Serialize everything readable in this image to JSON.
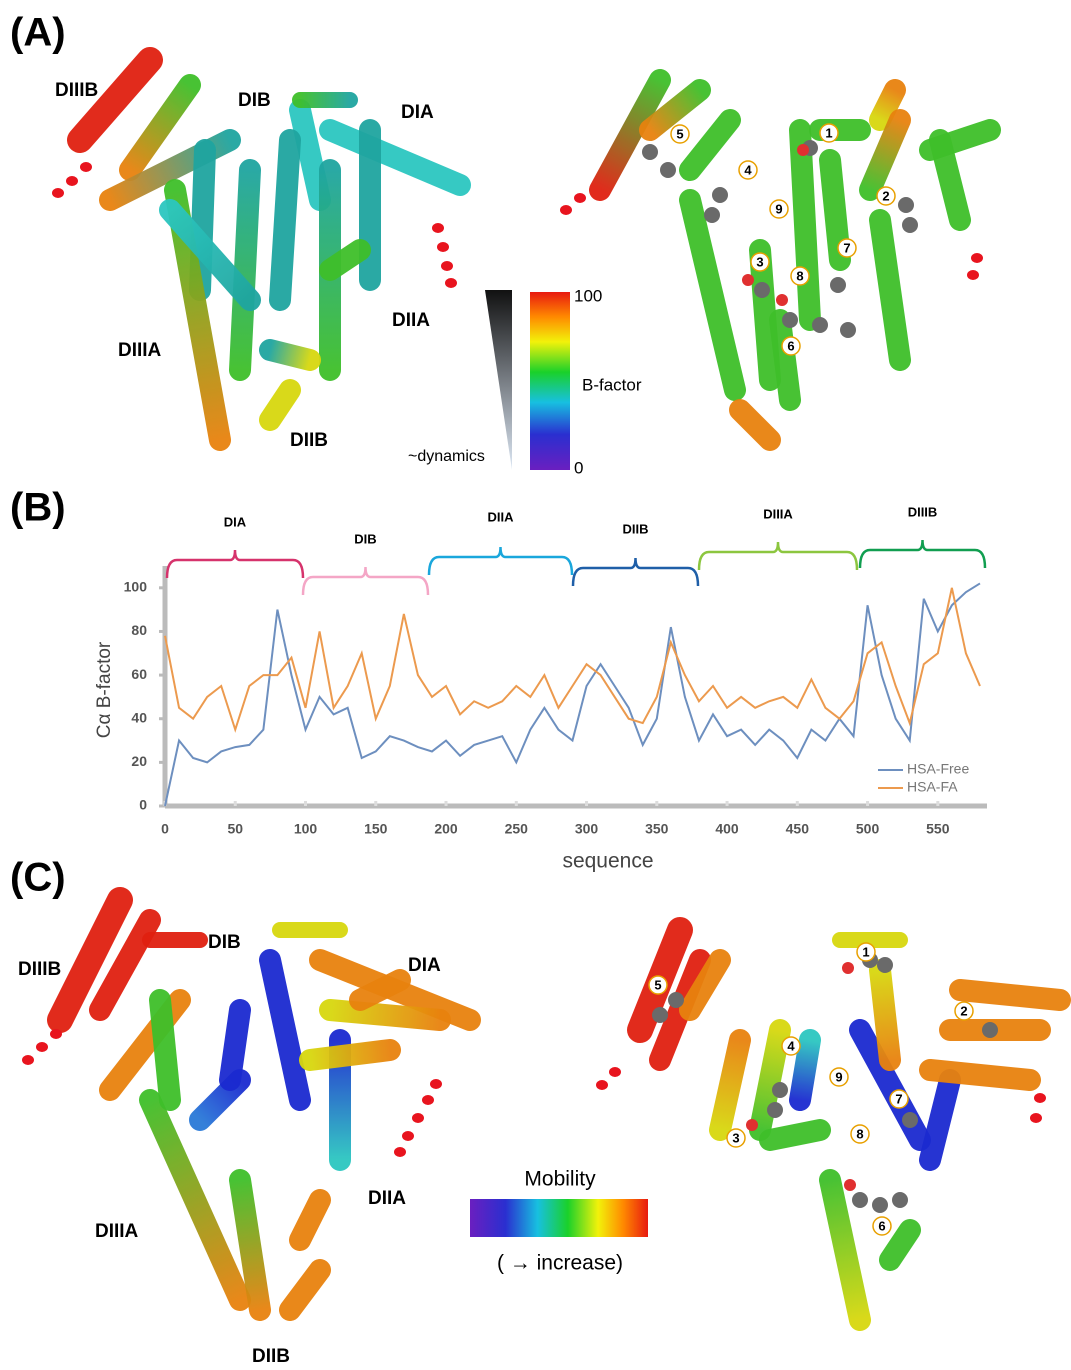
{
  "panel_a": {
    "label": "(A)",
    "domains": [
      "DIIIB",
      "DIB",
      "DIA",
      "DIIA",
      "DIIIA",
      "DIIB"
    ],
    "sites": [
      "5",
      "1",
      "4",
      "9",
      "2",
      "7",
      "3",
      "8",
      "6"
    ],
    "colorbar": {
      "max": 100,
      "min": 0,
      "title": "B-factor",
      "arrow_label": "~dynamics"
    }
  },
  "chart_data": {
    "type": "line",
    "panel_label": "(B)",
    "domains": [
      "DIA",
      "DIB",
      "DIIA",
      "DIIB",
      "DIIIA",
      "DIIIB"
    ],
    "y_label": "Cα B-factor",
    "x_label": "sequence",
    "x": [
      0,
      10,
      20,
      30,
      40,
      50,
      60,
      70,
      80,
      90,
      100,
      110,
      120,
      130,
      140,
      150,
      160,
      170,
      180,
      190,
      200,
      210,
      220,
      230,
      240,
      250,
      260,
      270,
      280,
      290,
      300,
      310,
      320,
      330,
      340,
      350,
      360,
      370,
      380,
      390,
      400,
      410,
      420,
      430,
      440,
      450,
      460,
      470,
      480,
      490,
      500,
      510,
      520,
      530,
      540,
      550,
      560,
      570,
      580
    ],
    "series": [
      {
        "name": "HSA-Free",
        "color": "#6d8fbf",
        "values": [
          0,
          30,
          22,
          20,
          25,
          27,
          28,
          35,
          90,
          60,
          35,
          50,
          42,
          45,
          22,
          25,
          32,
          30,
          27,
          25,
          30,
          23,
          28,
          30,
          32,
          20,
          35,
          45,
          35,
          30,
          55,
          65,
          55,
          45,
          28,
          40,
          82,
          50,
          30,
          42,
          32,
          35,
          28,
          35,
          30,
          22,
          35,
          30,
          40,
          32,
          92,
          60,
          40,
          30,
          95,
          80,
          92,
          98,
          102
        ]
      },
      {
        "name": "HSA-FA",
        "color": "#ec9a4e",
        "values": [
          78,
          45,
          40,
          50,
          55,
          35,
          55,
          60,
          60,
          68,
          45,
          80,
          45,
          55,
          70,
          40,
          55,
          88,
          60,
          50,
          55,
          42,
          48,
          45,
          48,
          55,
          50,
          60,
          45,
          55,
          65,
          60,
          50,
          40,
          38,
          50,
          75,
          60,
          48,
          55,
          45,
          50,
          45,
          48,
          50,
          45,
          58,
          45,
          40,
          48,
          70,
          75,
          55,
          38,
          65,
          70,
          100,
          70,
          55
        ]
      }
    ],
    "xlim": [
      0,
      585
    ],
    "ylim": [
      0,
      110
    ],
    "xticks": [
      0,
      50,
      100,
      150,
      200,
      250,
      300,
      350,
      400,
      450,
      500,
      550
    ],
    "yticks": [
      0,
      20,
      40,
      60,
      80,
      100
    ]
  },
  "panel_c": {
    "label": "(C)",
    "domains": [
      "DIIIB",
      "DIB",
      "DIA",
      "DIIA",
      "DIIIA",
      "DIIB"
    ],
    "sites": [
      "1",
      "5",
      "2",
      "4",
      "9",
      "7",
      "8",
      "3",
      "6"
    ],
    "colorbar": {
      "title": "Mobility",
      "note": "( → increase)"
    }
  }
}
